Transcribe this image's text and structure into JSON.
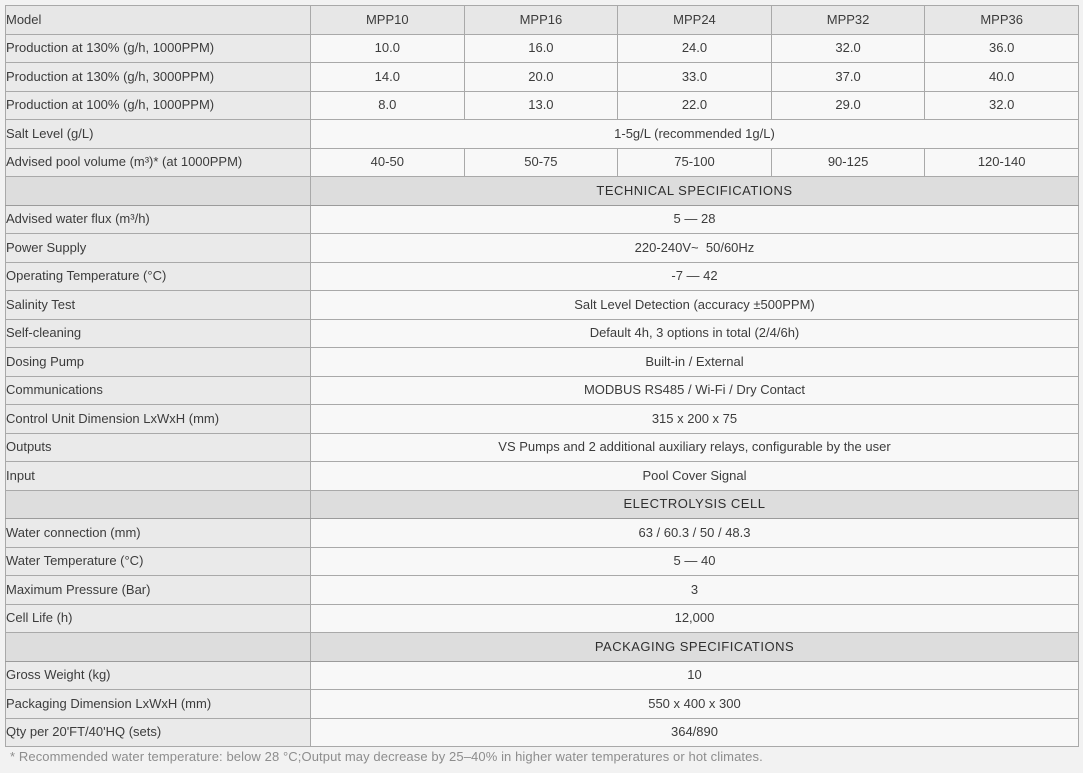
{
  "table": {
    "rows": [
      {
        "type": "header",
        "label": "Model",
        "values": [
          "MPP10",
          "MPP16",
          "MPP24",
          "MPP32",
          "MPP36"
        ]
      },
      {
        "type": "models",
        "label": "Production at 130% (g/h, 1000PPM)",
        "values": [
          "10.0",
          "16.0",
          "24.0",
          "32.0",
          "36.0"
        ]
      },
      {
        "type": "models",
        "label": "Production at 130% (g/h, 3000PPM)",
        "values": [
          "14.0",
          "20.0",
          "33.0",
          "37.0",
          "40.0"
        ]
      },
      {
        "type": "models",
        "label": "Production at 100% (g/h, 1000PPM)",
        "values": [
          "8.0",
          "13.0",
          "22.0",
          "29.0",
          "32.0"
        ]
      },
      {
        "type": "span",
        "label": "Salt Level (g/L)",
        "value": "1-5g/L (recommended 1g/L)"
      },
      {
        "type": "models",
        "label": "Advised pool volume (m³)* (at 1000PPM)",
        "values": [
          "40-50",
          "50-75",
          "75-100",
          "90-125",
          "120-140"
        ]
      },
      {
        "type": "section",
        "title": "TECHNICAL SPECIFICATIONS"
      },
      {
        "type": "span",
        "label": "Advised water flux (m³/h)",
        "value": "5 — 28"
      },
      {
        "type": "span",
        "label": "Power Supply",
        "value": "220-240V~  50/60Hz"
      },
      {
        "type": "span",
        "label": "Operating Temperature (°C)",
        "value": "-7 — 42"
      },
      {
        "type": "span",
        "label": "Salinity Test",
        "value": "Salt Level Detection (accuracy ±500PPM)"
      },
      {
        "type": "span",
        "label": "Self-cleaning",
        "value": "Default 4h, 3 options in total (2/4/6h)"
      },
      {
        "type": "span",
        "label": "Dosing Pump",
        "value": "Built-in / External"
      },
      {
        "type": "span",
        "label": "Communications",
        "value": "MODBUS RS485 / Wi-Fi / Dry Contact"
      },
      {
        "type": "span",
        "label": "Control Unit Dimension LxWxH (mm)",
        "value": "315 x 200 x 75"
      },
      {
        "type": "span",
        "label": "Outputs",
        "value": "VS Pumps and 2 additional auxiliary relays, configurable by the user"
      },
      {
        "type": "span",
        "label": "Input",
        "value": "Pool Cover Signal"
      },
      {
        "type": "section",
        "title": "ELECTROLYSIS CELL"
      },
      {
        "type": "span",
        "label": "Water connection (mm)",
        "value": "63 / 60.3 / 50 / 48.3"
      },
      {
        "type": "span",
        "label": "Water Temperature (°C)",
        "value": "5 — 40"
      },
      {
        "type": "span",
        "label": "Maximum Pressure (Bar)",
        "value": "3"
      },
      {
        "type": "span",
        "label": "Cell Life (h)",
        "value": "12,000"
      },
      {
        "type": "section",
        "title": "PACKAGING SPECIFICATIONS"
      },
      {
        "type": "span",
        "label": "Gross Weight (kg)",
        "value": "10"
      },
      {
        "type": "span",
        "label": "Packaging Dimension LxWxH (mm)",
        "value": "550 x 400 x 300"
      },
      {
        "type": "span",
        "label": "Qty per 20'FT/40'HQ (sets)",
        "value": "364/890"
      }
    ]
  },
  "footnote": "* Recommended water temperature: below 28 °C;Output may decrease by 25–40% in higher water temperatures or hot climates.",
  "colors": {
    "page_bg": "#f2f2f2",
    "header_bg": "#e7e7e7",
    "label_bg": "#eaeaea",
    "value_bg": "#f8f8f8",
    "section_bg": "#dddddd",
    "border": "#a9a9a9",
    "outer_border": "#8f8f8f",
    "text": "#3c3c3c",
    "footnote_text": "#8d8d8d"
  }
}
